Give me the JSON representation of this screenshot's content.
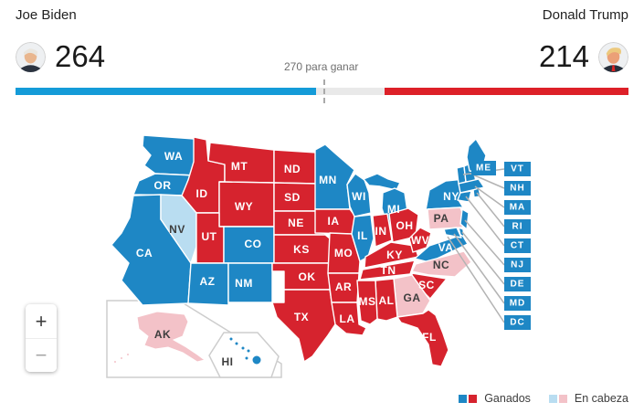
{
  "header": {
    "candidates": [
      {
        "name": "Joe Biden",
        "votes": "264"
      },
      {
        "name": "Donald Trump",
        "votes": "214"
      }
    ],
    "target_label": "270 para ganar",
    "bar": {
      "total": 538,
      "dem": 264,
      "rep": 214,
      "target": 270,
      "dem_color": "#149bd8",
      "rep_color": "#dd2028",
      "track_color": "#e9e9e9"
    }
  },
  "zoom_controls": {
    "zoom_in": "+",
    "zoom_out": "−"
  },
  "legend": {
    "colors": {
      "won-dem": "#1e87c5",
      "won-rep": "#d6232e",
      "lead-dem": "#b9ddf1",
      "lead-rep": "#f3c2c8"
    },
    "items": [
      {
        "label": "Ganados",
        "swatches": [
          "won-dem",
          "won-rep"
        ]
      },
      {
        "label": "En cabeza",
        "swatches": [
          "lead-dem",
          "lead-rep"
        ]
      }
    ]
  },
  "map": {
    "states": {
      "WA": {
        "label": "WA",
        "status": "won-dem"
      },
      "OR": {
        "label": "OR",
        "status": "won-dem"
      },
      "CA": {
        "label": "CA",
        "status": "won-dem"
      },
      "NV": {
        "label": "NV",
        "status": "lead-dem"
      },
      "ID": {
        "label": "ID",
        "status": "won-rep"
      },
      "MT": {
        "label": "MT",
        "status": "won-rep"
      },
      "WY": {
        "label": "WY",
        "status": "won-rep"
      },
      "UT": {
        "label": "UT",
        "status": "won-rep"
      },
      "CO": {
        "label": "CO",
        "status": "won-dem"
      },
      "AZ": {
        "label": "AZ",
        "status": "won-dem"
      },
      "NM": {
        "label": "NM",
        "status": "won-dem"
      },
      "ND": {
        "label": "ND",
        "status": "won-rep"
      },
      "SD": {
        "label": "SD",
        "status": "won-rep"
      },
      "NE": {
        "label": "NE",
        "status": "won-rep"
      },
      "KS": {
        "label": "KS",
        "status": "won-rep"
      },
      "OK": {
        "label": "OK",
        "status": "won-rep"
      },
      "TX": {
        "label": "TX",
        "status": "won-rep"
      },
      "MN": {
        "label": "MN",
        "status": "won-dem"
      },
      "IA": {
        "label": "IA",
        "status": "won-rep"
      },
      "MO": {
        "label": "MO",
        "status": "won-rep"
      },
      "AR": {
        "label": "AR",
        "status": "won-rep"
      },
      "LA": {
        "label": "LA",
        "status": "won-rep"
      },
      "WI": {
        "label": "WI",
        "status": "won-dem"
      },
      "MI": {
        "label": "MI",
        "status": "won-dem"
      },
      "IL": {
        "label": "IL",
        "status": "won-dem"
      },
      "IN": {
        "label": "IN",
        "status": "won-rep"
      },
      "OH": {
        "label": "OH",
        "status": "won-rep"
      },
      "KY": {
        "label": "KY",
        "status": "won-rep"
      },
      "TN": {
        "label": "TN",
        "status": "won-rep"
      },
      "WV": {
        "label": "WV",
        "status": "won-rep"
      },
      "VA": {
        "label": "VA",
        "status": "won-dem"
      },
      "NC": {
        "label": "NC",
        "status": "lead-rep"
      },
      "SC": {
        "label": "SC",
        "status": "won-rep"
      },
      "GA": {
        "label": "GA",
        "status": "lead-rep"
      },
      "AL": {
        "label": "AL",
        "status": "won-rep"
      },
      "MS": {
        "label": "MS",
        "status": "won-rep"
      },
      "FL": {
        "label": "FL",
        "status": "won-rep"
      },
      "NY": {
        "label": "NY",
        "status": "won-dem"
      },
      "PA": {
        "label": "PA",
        "status": "lead-rep"
      },
      "NJ": {
        "label": "NJ",
        "status": "won-dem"
      },
      "ME": {
        "label": "ME",
        "status": "won-dem"
      },
      "VT": {
        "label": "VT",
        "status": "won-dem"
      },
      "NH": {
        "label": "NH",
        "status": "won-dem"
      },
      "MA": {
        "label": "MA",
        "status": "won-dem"
      },
      "RI": {
        "label": "RI",
        "status": "won-dem"
      },
      "CT": {
        "label": "CT",
        "status": "won-dem"
      },
      "DE": {
        "label": "DE",
        "status": "won-dem"
      },
      "MD": {
        "label": "MD",
        "status": "won-dem"
      },
      "DC": {
        "label": "DC",
        "status": "won-dem"
      },
      "AK": {
        "label": "AK",
        "status": "lead-rep"
      },
      "HI": {
        "label": "HI",
        "status": "won-dem",
        "dark_label": true
      }
    },
    "label_dark_color": "#3e3e3e",
    "label_light_color": "#ffffff"
  }
}
